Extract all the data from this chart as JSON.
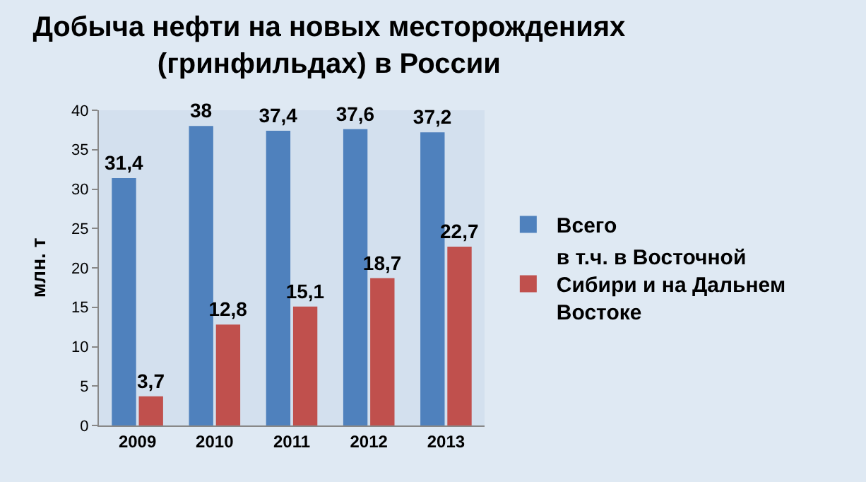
{
  "chart_data": {
    "type": "bar",
    "title": "Добыча нефти на новых месторождениях (гринфильдах) в России",
    "ylabel": "млн. т",
    "categories": [
      "2009",
      "2010",
      "2011",
      "2012",
      "2013"
    ],
    "series": [
      {
        "name": "Всего",
        "color": "#4f81bd",
        "values": [
          31.4,
          38,
          37.4,
          37.6,
          37.2
        ],
        "value_labels": [
          "31,4",
          "38",
          "37,4",
          "37,6",
          "37,2"
        ]
      },
      {
        "name": "в т.ч. в Восточной Сибири и на Дальнем Востоке",
        "color": "#c0504d",
        "values": [
          3.7,
          12.8,
          15.1,
          18.7,
          22.7
        ],
        "value_labels": [
          "3,7",
          "12,8",
          "15,1",
          "18,7",
          "22,7"
        ]
      }
    ],
    "ylim": [
      0,
      40
    ],
    "yticks": [
      0,
      5,
      10,
      15,
      20,
      25,
      30,
      35,
      40
    ],
    "grid": false,
    "legend": "right"
  }
}
